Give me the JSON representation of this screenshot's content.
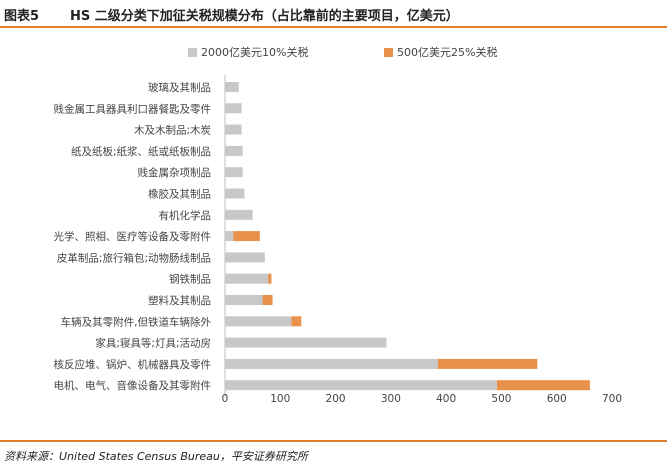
{
  "header": {
    "figure_label": "图表5",
    "title": "HS 二级分类下加征关税规模分布（占比靠前的主要项目，亿美元）"
  },
  "footer": {
    "source": "资料来源：United States Census Bureau，平安证券研究所"
  },
  "colors": {
    "accent_rule": "#e07b2a",
    "series_2000": "#c8c8c8",
    "series_500": "#e8914a",
    "axis": "#bfbfbf",
    "text": "#444444"
  },
  "chart_data": {
    "type": "bar",
    "orientation": "horizontal",
    "stacked": true,
    "categories": [
      "玻璃及其制品",
      "贱金属工具器具利口器餐匙及零件",
      "木及木制品;木炭",
      "纸及纸板;纸浆、纸或纸板制品",
      "贱金属杂项制品",
      "橡胶及其制品",
      "有机化学品",
      "光学、照相、医疗等设备及零附件",
      "皮革制品;旅行箱包;动物肠线制品",
      "钢铁制品",
      "塑料及其制品",
      "车辆及其零附件,但铁道车辆除外",
      "家具;寝具等;灯具;活动房",
      "核反应堆、锅炉、机械器具及零件",
      "电机、电气、音像设备及其零附件"
    ],
    "series": [
      {
        "name": "2000亿美元10%关税",
        "values": [
          25,
          30,
          30,
          32,
          32,
          35,
          50,
          15,
          72,
          78,
          68,
          120,
          292,
          385,
          492
        ]
      },
      {
        "name": "500亿美元25%关税",
        "values": [
          0,
          0,
          0,
          0,
          0,
          0,
          0,
          48,
          0,
          6,
          18,
          18,
          0,
          180,
          168
        ]
      }
    ],
    "xlim": [
      0,
      700
    ],
    "xticks": [
      0,
      100,
      200,
      300,
      400,
      500,
      600,
      700
    ],
    "grid": false,
    "legend_position": "top"
  }
}
